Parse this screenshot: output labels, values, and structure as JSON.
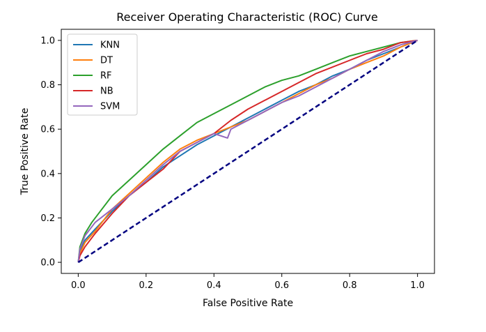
{
  "chart_data": {
    "type": "line",
    "title": "Receiver Operating Characteristic (ROC) Curve",
    "xlabel": "False Positive Rate",
    "ylabel": "True Positive Rate",
    "xlim": [
      -0.05,
      1.05
    ],
    "ylim": [
      -0.05,
      1.05
    ],
    "xticks": [
      0.0,
      0.2,
      0.4,
      0.6,
      0.8,
      1.0
    ],
    "yticks": [
      0.0,
      0.2,
      0.4,
      0.6,
      0.8,
      1.0
    ],
    "xtick_labels": [
      "0.0",
      "0.2",
      "0.4",
      "0.6",
      "0.8",
      "1.0"
    ],
    "ytick_labels": [
      "0.0",
      "0.2",
      "0.4",
      "0.6",
      "0.8",
      "1.0"
    ],
    "grid": false,
    "legend_position": "top-left",
    "series": [
      {
        "name": "KNN",
        "color": "#1f77b4",
        "points": [
          [
            0,
            0
          ],
          [
            0.005,
            0.05
          ],
          [
            0.02,
            0.1
          ],
          [
            0.05,
            0.15
          ],
          [
            0.1,
            0.23
          ],
          [
            0.15,
            0.3
          ],
          [
            0.2,
            0.36
          ],
          [
            0.25,
            0.43
          ],
          [
            0.3,
            0.48
          ],
          [
            0.35,
            0.53
          ],
          [
            0.4,
            0.57
          ],
          [
            0.45,
            0.61
          ],
          [
            0.5,
            0.65
          ],
          [
            0.55,
            0.69
          ],
          [
            0.6,
            0.73
          ],
          [
            0.65,
            0.77
          ],
          [
            0.7,
            0.8
          ],
          [
            0.75,
            0.84
          ],
          [
            0.8,
            0.87
          ],
          [
            0.85,
            0.91
          ],
          [
            0.9,
            0.94
          ],
          [
            0.95,
            0.97
          ],
          [
            1,
            1
          ]
        ]
      },
      {
        "name": "DT",
        "color": "#ff7f0e",
        "points": [
          [
            0,
            0
          ],
          [
            0.005,
            0.04
          ],
          [
            0.02,
            0.09
          ],
          [
            0.05,
            0.14
          ],
          [
            0.1,
            0.24
          ],
          [
            0.15,
            0.31
          ],
          [
            0.2,
            0.38
          ],
          [
            0.25,
            0.45
          ],
          [
            0.3,
            0.51
          ],
          [
            0.35,
            0.55
          ],
          [
            0.4,
            0.58
          ],
          [
            0.45,
            0.61
          ],
          [
            0.5,
            0.64
          ],
          [
            0.55,
            0.68
          ],
          [
            0.6,
            0.72
          ],
          [
            0.65,
            0.76
          ],
          [
            0.7,
            0.8
          ],
          [
            0.75,
            0.83
          ],
          [
            0.8,
            0.87
          ],
          [
            0.85,
            0.9
          ],
          [
            0.9,
            0.93
          ],
          [
            0.95,
            0.97
          ],
          [
            1,
            1
          ]
        ]
      },
      {
        "name": "RF",
        "color": "#2ca02c",
        "points": [
          [
            0,
            0
          ],
          [
            0.005,
            0.07
          ],
          [
            0.02,
            0.13
          ],
          [
            0.04,
            0.18
          ],
          [
            0.07,
            0.24
          ],
          [
            0.1,
            0.3
          ],
          [
            0.15,
            0.37
          ],
          [
            0.2,
            0.44
          ],
          [
            0.25,
            0.51
          ],
          [
            0.3,
            0.57
          ],
          [
            0.35,
            0.63
          ],
          [
            0.4,
            0.67
          ],
          [
            0.45,
            0.71
          ],
          [
            0.5,
            0.75
          ],
          [
            0.55,
            0.79
          ],
          [
            0.6,
            0.82
          ],
          [
            0.65,
            0.84
          ],
          [
            0.7,
            0.87
          ],
          [
            0.75,
            0.9
          ],
          [
            0.8,
            0.93
          ],
          [
            0.85,
            0.95
          ],
          [
            0.9,
            0.97
          ],
          [
            0.95,
            0.99
          ],
          [
            1,
            1
          ]
        ]
      },
      {
        "name": "NB",
        "color": "#d62728",
        "points": [
          [
            0,
            0
          ],
          [
            0.005,
            0.03
          ],
          [
            0.02,
            0.07
          ],
          [
            0.05,
            0.13
          ],
          [
            0.1,
            0.22
          ],
          [
            0.15,
            0.3
          ],
          [
            0.2,
            0.36
          ],
          [
            0.25,
            0.42
          ],
          [
            0.3,
            0.5
          ],
          [
            0.35,
            0.54
          ],
          [
            0.4,
            0.58
          ],
          [
            0.45,
            0.64
          ],
          [
            0.5,
            0.69
          ],
          [
            0.55,
            0.73
          ],
          [
            0.6,
            0.77
          ],
          [
            0.65,
            0.81
          ],
          [
            0.7,
            0.85
          ],
          [
            0.75,
            0.88
          ],
          [
            0.8,
            0.91
          ],
          [
            0.85,
            0.94
          ],
          [
            0.9,
            0.96
          ],
          [
            0.95,
            0.99
          ],
          [
            1,
            1
          ]
        ]
      },
      {
        "name": "SVM",
        "color": "#9467bd",
        "points": [
          [
            0,
            0
          ],
          [
            0.005,
            0.06
          ],
          [
            0.02,
            0.12
          ],
          [
            0.05,
            0.18
          ],
          [
            0.1,
            0.24
          ],
          [
            0.15,
            0.3
          ],
          [
            0.2,
            0.37
          ],
          [
            0.25,
            0.44
          ],
          [
            0.3,
            0.5
          ],
          [
            0.35,
            0.54
          ],
          [
            0.4,
            0.58
          ],
          [
            0.44,
            0.56
          ],
          [
            0.45,
            0.6
          ],
          [
            0.5,
            0.64
          ],
          [
            0.55,
            0.68
          ],
          [
            0.6,
            0.72
          ],
          [
            0.65,
            0.75
          ],
          [
            0.7,
            0.79
          ],
          [
            0.75,
            0.83
          ],
          [
            0.8,
            0.87
          ],
          [
            0.85,
            0.91
          ],
          [
            0.9,
            0.95
          ],
          [
            0.95,
            0.98
          ],
          [
            1,
            1
          ]
        ]
      }
    ],
    "reference_line": {
      "color": "#000080",
      "style": "dashed",
      "points": [
        [
          0,
          0
        ],
        [
          1,
          1
        ]
      ]
    }
  }
}
